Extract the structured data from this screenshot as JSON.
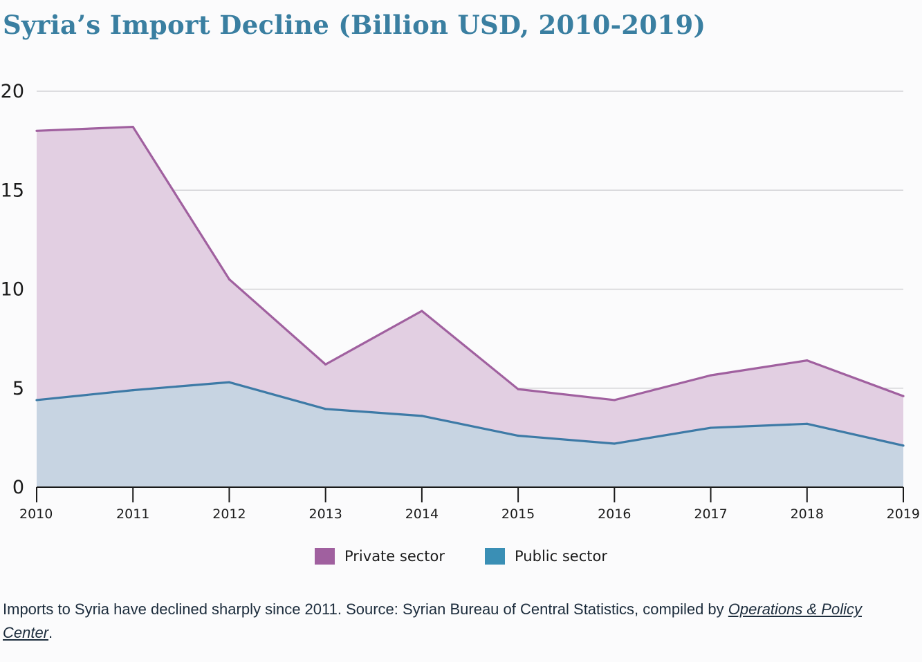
{
  "title": "Syria’s Import Decline (Billion USD, 2010-2019)",
  "colors": {
    "title": "#3a7fa1",
    "private_line": "#a0609f",
    "private_fill": "#e2cfe2",
    "public_line": "#3d7aa6",
    "public_fill": "#c7d4e2",
    "grid": "#d3d3d6",
    "axis": "#1a1a1a"
  },
  "legend": {
    "private_label": "Private sector",
    "public_label": "Public sector",
    "private_swatch": "#a0609f",
    "public_swatch": "#3a8fb5"
  },
  "caption": {
    "text": "Imports to Syria have declined sharply since 2011. Source: Syrian Bureau of Central Statistics, compiled by ",
    "link": "Operations & Policy Center",
    "end": "."
  },
  "chart_data": {
    "type": "area",
    "stacked": false,
    "categories": [
      "2010",
      "2011",
      "2012",
      "2013",
      "2014",
      "2015",
      "2016",
      "2017",
      "2018",
      "2019"
    ],
    "series": [
      {
        "name": "Private sector",
        "values": [
          18.0,
          18.2,
          10.5,
          6.2,
          8.9,
          4.95,
          4.4,
          5.65,
          6.4,
          4.6
        ]
      },
      {
        "name": "Public sector",
        "values": [
          4.4,
          4.9,
          5.3,
          3.95,
          3.6,
          2.6,
          2.2,
          3.0,
          3.2,
          2.1
        ]
      }
    ],
    "ylim": [
      0,
      20
    ],
    "yticks": [
      0,
      5,
      10,
      15,
      20
    ],
    "grid": true,
    "legend_position": "bottom-center"
  }
}
